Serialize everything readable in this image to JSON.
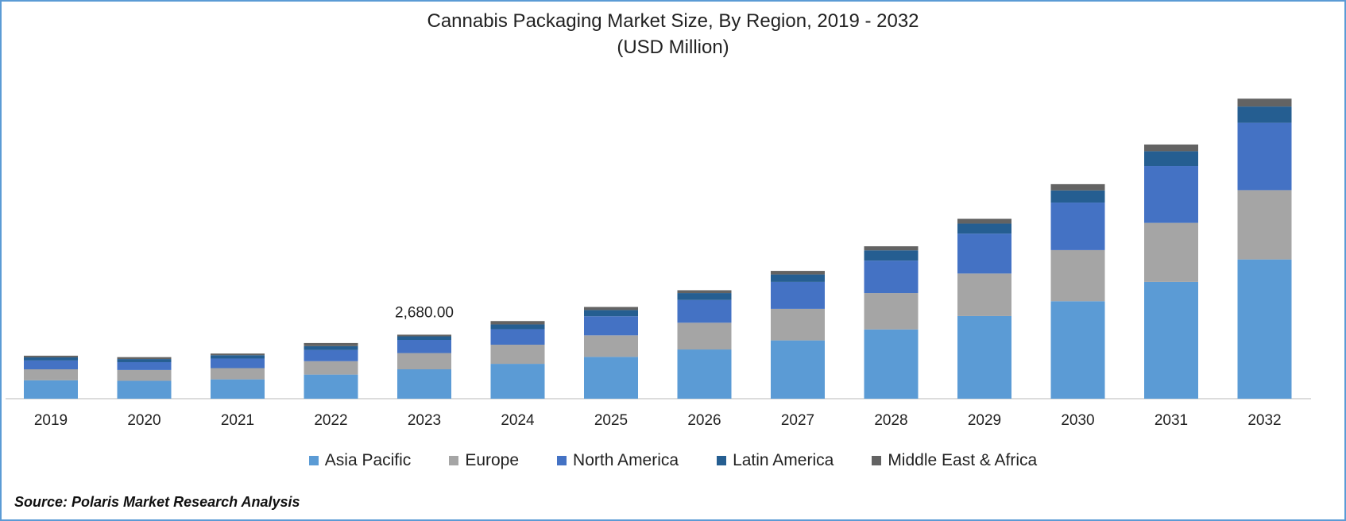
{
  "chart_data": {
    "type": "bar",
    "stacked": true,
    "title": "Cannabis Packaging Market Size, By Region, 2019 - 2032",
    "subtitle": "(USD Million)",
    "xlabel": "",
    "ylabel": "",
    "categories": [
      "2019",
      "2020",
      "2021",
      "2022",
      "2023",
      "2024",
      "2025",
      "2026",
      "2027",
      "2028",
      "2029",
      "2030",
      "2031",
      "2032"
    ],
    "series": [
      {
        "name": "Asia Pacific",
        "color": "#5b9bd5",
        "values": [
          770,
          750,
          810,
          1010,
          1230,
          1460,
          1750,
          2060,
          2440,
          2900,
          3460,
          4080,
          4890,
          5830
        ]
      },
      {
        "name": "Europe",
        "color": "#a5a5a5",
        "values": [
          460,
          450,
          470,
          560,
          680,
          800,
          900,
          1120,
          1320,
          1520,
          1780,
          2140,
          2470,
          2900
        ]
      },
      {
        "name": "North America",
        "color": "#4472c4",
        "values": [
          370,
          330,
          400,
          470,
          550,
          650,
          800,
          950,
          1130,
          1360,
          1670,
          1990,
          2380,
          2820
        ]
      },
      {
        "name": "Latin America",
        "color": "#255e91",
        "values": [
          130,
          130,
          140,
          160,
          150,
          200,
          260,
          290,
          310,
          430,
          420,
          510,
          620,
          680
        ]
      },
      {
        "name": "Middle East & Africa",
        "color": "#636363",
        "values": [
          70,
          80,
          70,
          130,
          70,
          140,
          130,
          120,
          150,
          170,
          200,
          260,
          280,
          330
        ]
      }
    ],
    "annotations": [
      {
        "category": "2023",
        "text": "2,680.00"
      }
    ],
    "ylim": [
      0,
      12700
    ],
    "grid": false,
    "legend": "bottom"
  },
  "source": "Source: Polaris Market Research Analysis"
}
